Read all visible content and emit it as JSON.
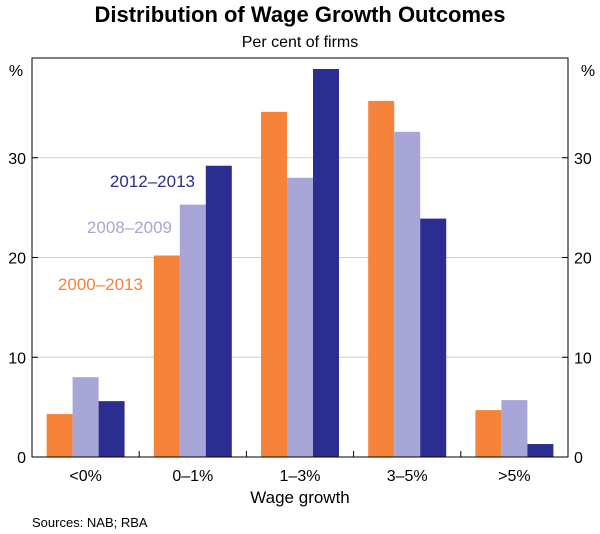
{
  "chart_data": {
    "type": "bar",
    "title": "Distribution of Wage Growth Outcomes",
    "subtitle": "Per cent of firms",
    "xlabel": "Wage growth",
    "ylabel_left": "%",
    "ylabel_right": "%",
    "categories": [
      "<0%",
      "0–1%",
      "1–3%",
      "3–5%",
      ">5%"
    ],
    "ylim": [
      0,
      40
    ],
    "yticks": [
      0,
      10,
      20,
      30
    ],
    "series": [
      {
        "name": "2000–2013",
        "color": "#f5833a",
        "values": [
          4.3,
          20.2,
          34.6,
          35.7,
          4.7
        ]
      },
      {
        "name": "2008–2009",
        "color": "#a7a6d6",
        "values": [
          8.0,
          25.3,
          28.0,
          32.6,
          5.7
        ]
      },
      {
        "name": "2012–2013",
        "color": "#2b2d91",
        "values": [
          5.6,
          29.2,
          38.9,
          23.9,
          1.3
        ]
      }
    ],
    "source": "Sources: NAB; RBA"
  }
}
